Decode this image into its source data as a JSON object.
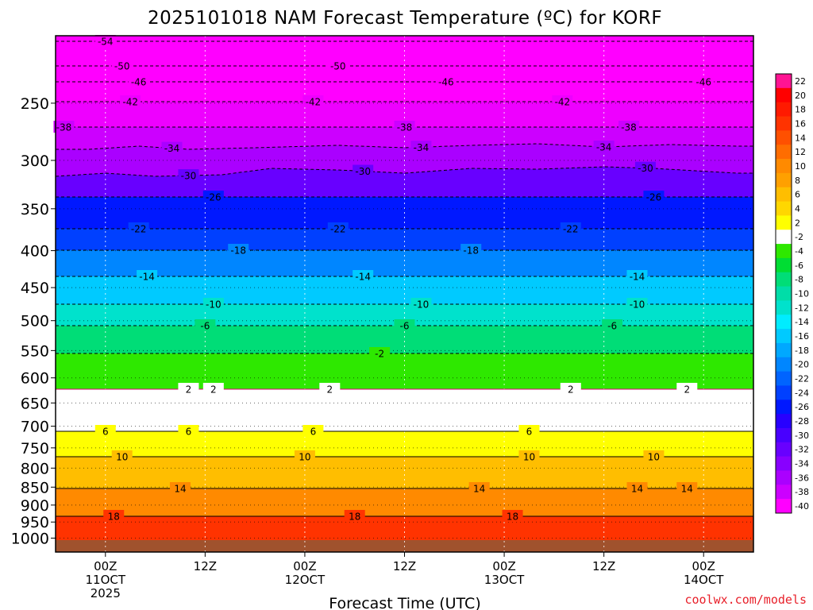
{
  "chart_data": {
    "type": "heatmap",
    "title": "2025101018 NAM Forecast Temperature (ºC) for KORF",
    "xlabel": "Forecast Time (UTC)",
    "ylabel": "",
    "credit": "coolwx.com/models",
    "y_scale": "log",
    "y_inverted": true,
    "ylim": [
      1025,
      200
    ],
    "xlim": [
      -6,
      78
    ],
    "y_ticks": [
      250,
      300,
      350,
      400,
      450,
      500,
      550,
      600,
      650,
      700,
      750,
      800,
      850,
      900,
      950,
      1000
    ],
    "y_tick_labels": [
      "250",
      "300",
      "350",
      "400",
      "450",
      "500",
      "550",
      "600",
      "650",
      "700",
      "750",
      "800",
      "850",
      "900",
      "950",
      "1000"
    ],
    "x_ticks": [
      {
        "x": 0,
        "hour": "00Z",
        "date": "11OCT",
        "year": "2025"
      },
      {
        "x": 12,
        "hour": "12Z",
        "date": "",
        "year": ""
      },
      {
        "x": 24,
        "hour": "00Z",
        "date": "12OCT",
        "year": ""
      },
      {
        "x": 36,
        "hour": "12Z",
        "date": "",
        "year": ""
      },
      {
        "x": 48,
        "hour": "00Z",
        "date": "13OCT",
        "year": ""
      },
      {
        "x": 60,
        "hour": "12Z",
        "date": "",
        "year": ""
      },
      {
        "x": 72,
        "hour": "00Z",
        "date": "14OCT",
        "year": ""
      }
    ],
    "grid": true,
    "colorbar": {
      "placement": "right",
      "labels": [
        "22",
        "20",
        "18",
        "16",
        "14",
        "12",
        "10",
        "8",
        "6",
        "4",
        "2",
        "-2",
        "-4",
        "-6",
        "-8",
        "-10",
        "-12",
        "-14",
        "-16",
        "-18",
        "-20",
        "-22",
        "-24",
        "-26",
        "-28",
        "-30",
        "-32",
        "-34",
        "-36",
        "-38",
        "-40"
      ],
      "colors": [
        "#ff1493",
        "#ff0000",
        "#ff1a00",
        "#ff3300",
        "#ff5000",
        "#ff6d00",
        "#ff8a00",
        "#ffa000",
        "#ffbe00",
        "#ffd700",
        "#ffff00",
        "#ffffff",
        "#2ee800",
        "#00dd33",
        "#00dd77",
        "#00dda8",
        "#00e2cc",
        "#00ecff",
        "#00caff",
        "#00a8ff",
        "#0086ff",
        "#0064ff",
        "#0040ff",
        "#0018ff",
        "#2800ff",
        "#4800ff",
        "#6800ff",
        "#8800ff",
        "#aa00ff",
        "#cc00ff",
        "#ff00ff"
      ]
    },
    "contour_labels": [
      {
        "text": "-54",
        "x": 0
      },
      {
        "text": "-50",
        "x": 28
      },
      {
        "text": "-46",
        "x": 72
      },
      {
        "text": "-50",
        "x": 2
      },
      {
        "text": "-46",
        "x": 41
      },
      {
        "text": "-42",
        "x": 55
      },
      {
        "text": "-46",
        "x": 4
      },
      {
        "text": "-42",
        "x": 25
      },
      {
        "text": "-38",
        "x": 63
      },
      {
        "text": "-42",
        "x": 3
      },
      {
        "text": "-38",
        "x": 36
      },
      {
        "text": "-38",
        "x": -5
      },
      {
        "text": "-34",
        "x": 38
      },
      {
        "text": "-34",
        "x": 60
      },
      {
        "text": "-34",
        "x": 8
      },
      {
        "text": "-30",
        "x": 31
      },
      {
        "text": "-30",
        "x": 10
      },
      {
        "text": "-30",
        "x": 65
      },
      {
        "text": "-26",
        "x": 13
      },
      {
        "text": "-22",
        "x": 28
      },
      {
        "text": "-26",
        "x": 66
      },
      {
        "text": "-22",
        "x": 56
      },
      {
        "text": "-22",
        "x": 4
      },
      {
        "text": "-18",
        "x": 16
      },
      {
        "text": "-18",
        "x": 44
      },
      {
        "text": "-14",
        "x": 31
      },
      {
        "text": "-14",
        "x": 64
      },
      {
        "text": "-14",
        "x": 5
      },
      {
        "text": "-10",
        "x": 38
      },
      {
        "text": "-10",
        "x": 64
      },
      {
        "text": "-10",
        "x": 13
      },
      {
        "text": "-6",
        "x": 36
      },
      {
        "text": "-6",
        "x": 61
      },
      {
        "text": "-6",
        "x": 12
      },
      {
        "text": "-2",
        "x": 33
      },
      {
        "text": "2",
        "x": 13
      },
      {
        "text": "2",
        "x": 56
      },
      {
        "text": "2",
        "x": 70
      },
      {
        "text": "2",
        "x": 10
      },
      {
        "text": "2",
        "x": 27
      },
      {
        "text": "6",
        "x": 51
      },
      {
        "text": "10",
        "x": 51
      },
      {
        "text": "6",
        "x": 10
      },
      {
        "text": "6",
        "x": 25
      },
      {
        "text": "10",
        "x": 66
      },
      {
        "text": "6",
        "x": 0
      },
      {
        "text": "10",
        "x": 24
      },
      {
        "text": "14",
        "x": 45
      },
      {
        "text": "14",
        "x": 70
      },
      {
        "text": "10",
        "x": 2
      },
      {
        "text": "18",
        "x": 49
      },
      {
        "text": "14",
        "x": 64
      },
      {
        "text": "14",
        "x": 9
      },
      {
        "text": "18",
        "x": 30
      },
      {
        "text": "18",
        "x": 1
      }
    ]
  }
}
